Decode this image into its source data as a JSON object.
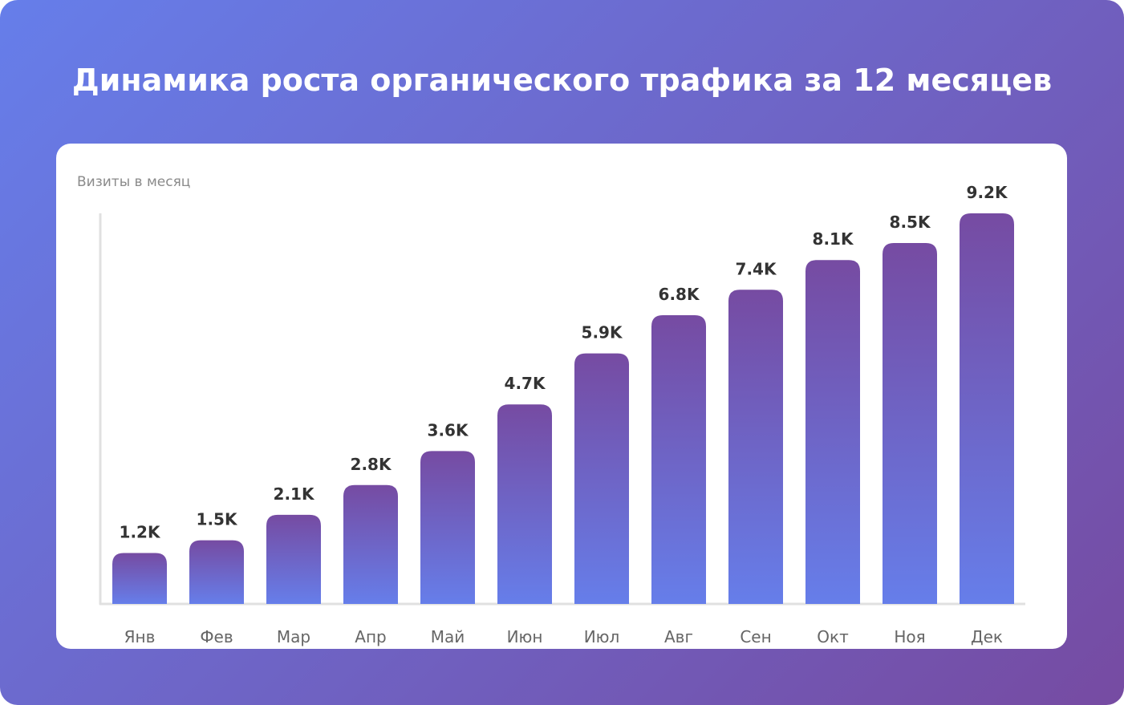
{
  "title": "Динамика роста органического трафика за 12 месяцев",
  "colors": {
    "background_start": "#667eea",
    "background_end": "#764ba2",
    "bar_top": "#764ba2",
    "bar_bottom": "#667eea",
    "axis": "#e0e0e0",
    "value_text": "#333333",
    "tick_text": "#666666",
    "ylabel_text": "#8a8a8a"
  },
  "chart_data": {
    "type": "bar",
    "title": "Динамика роста органического трафика за 12 месяцев",
    "xlabel": "",
    "ylabel": "Визиты в месяц",
    "categories": [
      "Янв",
      "Фев",
      "Мар",
      "Апр",
      "Май",
      "Июн",
      "Июл",
      "Авг",
      "Сен",
      "Окт",
      "Ноя",
      "Дек"
    ],
    "values": [
      1200,
      1500,
      2100,
      2800,
      3600,
      4700,
      5900,
      6800,
      7400,
      8100,
      8500,
      9200
    ],
    "value_labels": [
      "1.2K",
      "1.5K",
      "2.1K",
      "2.8K",
      "3.6K",
      "4.7K",
      "5.9K",
      "6.8K",
      "7.4K",
      "8.1K",
      "8.5K",
      "9.2K"
    ],
    "ylim": [
      0,
      9200
    ],
    "grid": false,
    "legend": "none"
  }
}
